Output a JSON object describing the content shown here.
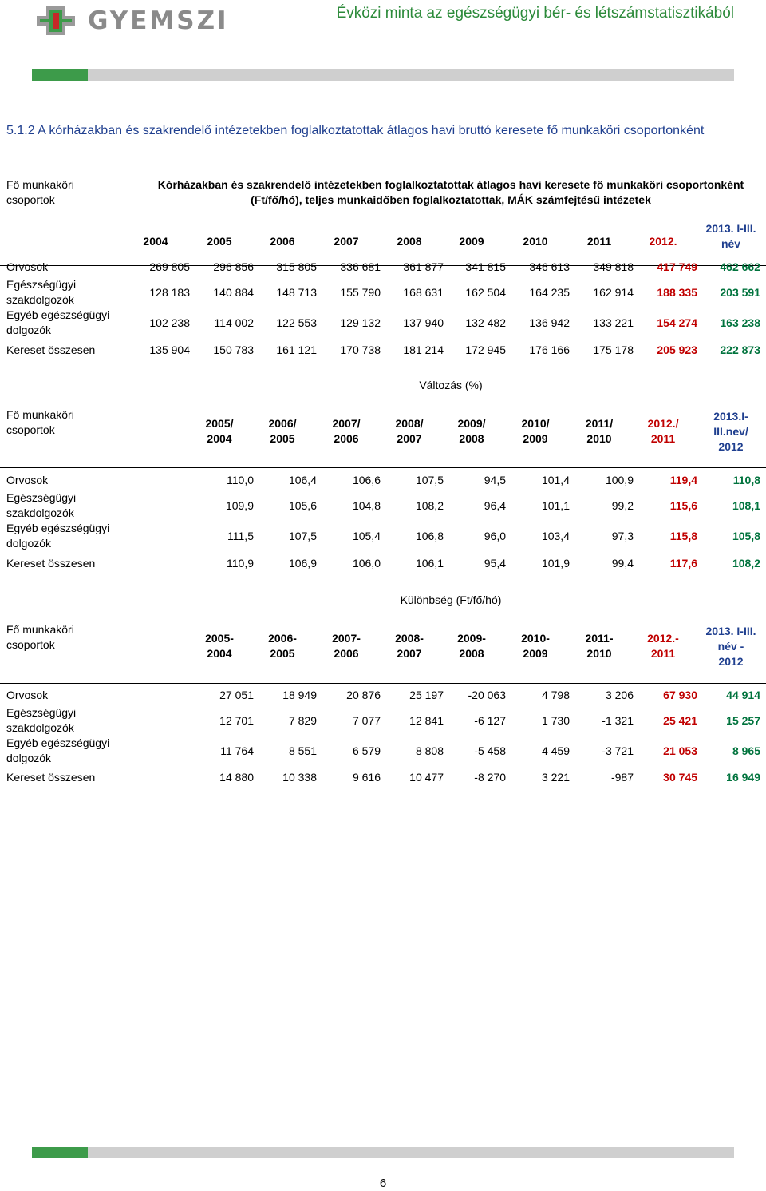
{
  "header": {
    "logo_text": "GYEMSZI",
    "title": "Évközi minta az egészségügyi bér- és létszámstatisztikából"
  },
  "section_title": "5.1.2 A kórházakban és szakrendelő intézetekben foglalkoztatottak átlagos havi bruttó keresete fő munkaköri csoportonként",
  "page_number": "6",
  "tables": [
    {
      "group_label": [
        "Fő munkaköri",
        "csoportok"
      ],
      "subtitle": [
        "Kórházakban és szakrendelő intézetekben foglalkoztatottak átlagos havi keresete fő munkaköri csoportonként",
        "(Ft/fő/hó), teljes munkaidőben foglalkoztatottak, MÁK számfejtésű intézetek"
      ],
      "headers": [
        [
          "2004"
        ],
        [
          "2005"
        ],
        [
          "2006"
        ],
        [
          "2007"
        ],
        [
          "2008"
        ],
        [
          "2009"
        ],
        [
          "2010"
        ],
        [
          "2011"
        ],
        [
          "2012."
        ],
        [
          "2013. I-III.",
          "név"
        ]
      ],
      "rows": [
        {
          "label": [
            "Orvosok"
          ],
          "values": [
            "269 805",
            "296 856",
            "315 805",
            "336 681",
            "361 877",
            "341 815",
            "346 613",
            "349 818",
            "417 749",
            "462 662"
          ]
        },
        {
          "label": [
            "Egészségügyi",
            "szakdolgozók"
          ],
          "values": [
            "128 183",
            "140 884",
            "148 713",
            "155 790",
            "168 631",
            "162 504",
            "164 235",
            "162 914",
            "188 335",
            "203 591"
          ]
        },
        {
          "label": [
            "Egyéb egészségügyi",
            "dolgozók"
          ],
          "values": [
            "102 238",
            "114 002",
            "122 553",
            "129 132",
            "137 940",
            "132 482",
            "136 942",
            "133 221",
            "154 274",
            "163 238"
          ]
        },
        {
          "label": [
            "Kereset összesen"
          ],
          "values": [
            "135 904",
            "150 783",
            "161 121",
            "170 738",
            "181 214",
            "172 945",
            "176 166",
            "175 178",
            "205 923",
            "222 873"
          ]
        }
      ]
    },
    {
      "group_label": [
        "Fő munkaköri",
        "csoportok"
      ],
      "subtitle": [
        "Változás (%)"
      ],
      "headers": [
        [
          "2005/",
          "2004"
        ],
        [
          "2006/",
          "2005"
        ],
        [
          "2007/",
          "2006"
        ],
        [
          "2008/",
          "2007"
        ],
        [
          "2009/",
          "2008"
        ],
        [
          "2010/",
          "2009"
        ],
        [
          "2011/",
          "2010"
        ],
        [
          "2012./",
          "2011"
        ],
        [
          "2013.I-",
          "III.nev/",
          "2012"
        ]
      ],
      "rows": [
        {
          "label": [
            "Orvosok"
          ],
          "values": [
            "110,0",
            "106,4",
            "106,6",
            "107,5",
            "94,5",
            "101,4",
            "100,9",
            "119,4",
            "110,8"
          ]
        },
        {
          "label": [
            "Egészségügyi",
            "szakdolgozók"
          ],
          "values": [
            "109,9",
            "105,6",
            "104,8",
            "108,2",
            "96,4",
            "101,1",
            "99,2",
            "115,6",
            "108,1"
          ]
        },
        {
          "label": [
            "Egyéb egészségügyi",
            "dolgozók"
          ],
          "values": [
            "111,5",
            "107,5",
            "105,4",
            "106,8",
            "96,0",
            "103,4",
            "97,3",
            "115,8",
            "105,8"
          ]
        },
        {
          "label": [
            "Kereset összesen"
          ],
          "values": [
            "110,9",
            "106,9",
            "106,0",
            "106,1",
            "95,4",
            "101,9",
            "99,4",
            "117,6",
            "108,2"
          ]
        }
      ]
    },
    {
      "group_label": [
        "Fő munkaköri",
        "csoportok"
      ],
      "subtitle": [
        "Különbség (Ft/fő/hó)"
      ],
      "headers": [
        [
          "2005-",
          "2004"
        ],
        [
          "2006-",
          "2005"
        ],
        [
          "2007-",
          "2006"
        ],
        [
          "2008-",
          "2007"
        ],
        [
          "2009-",
          "2008"
        ],
        [
          "2010-",
          "2009"
        ],
        [
          "2011-",
          "2010"
        ],
        [
          "2012.-",
          "2011"
        ],
        [
          "2013. I-III.",
          "név -",
          "2012"
        ]
      ],
      "rows": [
        {
          "label": [
            "Orvosok"
          ],
          "values": [
            "27 051",
            "18 949",
            "20 876",
            "25 197",
            "-20 063",
            "4 798",
            "3 206",
            "67 930",
            "44 914"
          ]
        },
        {
          "label": [
            "Egészségügyi",
            "szakdolgozók"
          ],
          "values": [
            "12 701",
            "7 829",
            "7 077",
            "12 841",
            "-6 127",
            "1 730",
            "-1 321",
            "25 421",
            "15 257"
          ]
        },
        {
          "label": [
            "Egyéb egészségügyi",
            "dolgozók"
          ],
          "values": [
            "11 764",
            "8 551",
            "6 579",
            "8 808",
            "-5 458",
            "4 459",
            "-3 721",
            "21 053",
            "8 965"
          ]
        },
        {
          "label": [
            "Kereset összesen"
          ],
          "values": [
            "14 880",
            "10 338",
            "9 616",
            "10 477",
            "-8 270",
            "3 221",
            "-987",
            "30 745",
            "16 949"
          ]
        }
      ]
    }
  ]
}
